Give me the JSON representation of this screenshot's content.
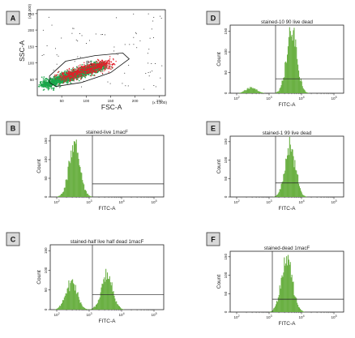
{
  "panels": [
    {
      "letter": "A",
      "chart_data": {
        "type": "scatter",
        "xlabel": "FSC-A",
        "ylabel": "SSC-A",
        "x_multiplier": "(x 1,000)",
        "y_multiplier": "(x 1,000)",
        "xticks": [
          "50",
          "100",
          "150",
          "200",
          "250"
        ],
        "yticks": [
          "50",
          "100",
          "150",
          "200",
          "250"
        ],
        "xlim": [
          0,
          262
        ],
        "ylim": [
          0,
          262
        ],
        "gate_label": "P1",
        "gate_polygon": [
          [
            25,
            60
          ],
          [
            58,
            105
          ],
          [
            118,
            122
          ],
          [
            175,
            130
          ],
          [
            188,
            112
          ],
          [
            150,
            70
          ],
          [
            90,
            40
          ],
          [
            38,
            28
          ],
          [
            25,
            40
          ]
        ],
        "colors": {
          "inside_gate": "#e0202a",
          "outside_gate": "#1aa64a",
          "sparse": "#222222"
        }
      }
    },
    {
      "letter": "B",
      "chart_data": {
        "type": "area",
        "title": "stained-live 1macF",
        "xlabel": "FITC-A",
        "ylabel": "Count",
        "x_scale": "log",
        "xticks": [
          "10^2",
          "10^3",
          "10^4",
          "10^5"
        ],
        "yticks": [
          "0",
          "50",
          "100",
          "150"
        ],
        "xlim_log10": [
          1.8,
          5.3
        ],
        "ylim": [
          0,
          165
        ],
        "gate": {
          "x_from": 3.1,
          "x_to": 5.3,
          "y": 35
        },
        "peaks": [
          {
            "center": 2.55,
            "sd": 0.17,
            "height": 138
          }
        ],
        "color": "#6ab043"
      }
    },
    {
      "letter": "C",
      "chart_data": {
        "type": "area",
        "title": "stained-half live half dead 1macF",
        "xlabel": "FITC-A",
        "ylabel": "Count",
        "x_scale": "log",
        "xticks": [
          "10^2",
          "10^3",
          "10^4",
          "10^5"
        ],
        "yticks": [
          "0",
          "50",
          "100",
          "150"
        ],
        "xlim_log10": [
          1.8,
          5.3
        ],
        "ylim": [
          0,
          165
        ],
        "gate": {
          "x_from": 3.1,
          "x_to": 5.3,
          "y": 38
        },
        "peaks": [
          {
            "center": 2.45,
            "sd": 0.17,
            "height": 72
          },
          {
            "center": 3.55,
            "sd": 0.17,
            "height": 92
          }
        ],
        "color": "#6ab043"
      }
    },
    {
      "letter": "D",
      "chart_data": {
        "type": "area",
        "title": "stained-10 90 live dead",
        "xlabel": "FITC-A",
        "ylabel": "Count",
        "x_scale": "log",
        "xticks": [
          "10^2",
          "10^3",
          "10^4",
          "10^5"
        ],
        "yticks": [
          "0",
          "50",
          "100",
          "150"
        ],
        "xlim_log10": [
          1.8,
          5.3
        ],
        "ylim": [
          0,
          165
        ],
        "gate": {
          "x_from": 3.2,
          "x_to": 5.3,
          "y": 35
        },
        "peaks": [
          {
            "center": 2.45,
            "sd": 0.16,
            "height": 14
          },
          {
            "center": 3.7,
            "sd": 0.16,
            "height": 148
          }
        ],
        "color": "#6ab043"
      }
    },
    {
      "letter": "E",
      "chart_data": {
        "type": "area",
        "title": "stained-1 99 live dead",
        "xlabel": "FITC-A",
        "ylabel": "Count",
        "x_scale": "log",
        "xticks": [
          "10^2",
          "10^3",
          "10^4",
          "10^5"
        ],
        "yticks": [
          "0",
          "50",
          "100",
          "150"
        ],
        "xlim_log10": [
          1.8,
          5.3
        ],
        "ylim": [
          0,
          165
        ],
        "gate": {
          "x_from": 3.2,
          "x_to": 5.3,
          "y": 38
        },
        "peaks": [
          {
            "center": 3.65,
            "sd": 0.16,
            "height": 140
          }
        ],
        "color": "#6ab043"
      }
    },
    {
      "letter": "F",
      "chart_data": {
        "type": "area",
        "title": "stained-dead 1macF",
        "xlabel": "FITC-A",
        "ylabel": "Count",
        "x_scale": "log",
        "xticks": [
          "10^2",
          "10^3",
          "10^4",
          "10^5"
        ],
        "yticks": [
          "0",
          "50",
          "100",
          "150"
        ],
        "xlim_log10": [
          1.8,
          5.3
        ],
        "ylim": [
          0,
          165
        ],
        "gate": {
          "x_from": 3.1,
          "x_to": 5.3,
          "y": 35
        },
        "peaks": [
          {
            "center": 3.55,
            "sd": 0.17,
            "height": 140
          }
        ],
        "color": "#6ab043"
      }
    }
  ]
}
